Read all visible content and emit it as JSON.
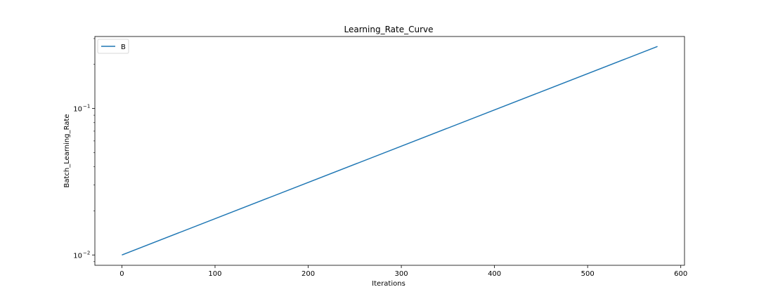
{
  "chart_data": {
    "type": "line",
    "title": "Learning_Rate_Curve",
    "xlabel": "Iterations",
    "ylabel": "Batch_Learning_Rate",
    "xlim": [
      -29,
      604
    ],
    "ylim": [
      0.0085,
      0.31
    ],
    "yscale": "log",
    "x_ticks": [
      0,
      100,
      200,
      300,
      400,
      500,
      600
    ],
    "x_tick_labels": [
      "0",
      "100",
      "200",
      "300",
      "400",
      "500",
      "600"
    ],
    "y_ticks": [
      0.01,
      0.1
    ],
    "y_tick_labels": [
      {
        "base": "10",
        "exp": "−2"
      },
      {
        "base": "10",
        "exp": "−1"
      }
    ],
    "grid": false,
    "legend_position": "upper left",
    "series": [
      {
        "name": "B",
        "color": "#1f77b4",
        "x": [
          0,
          575
        ],
        "y": [
          0.01,
          0.265
        ]
      }
    ]
  }
}
